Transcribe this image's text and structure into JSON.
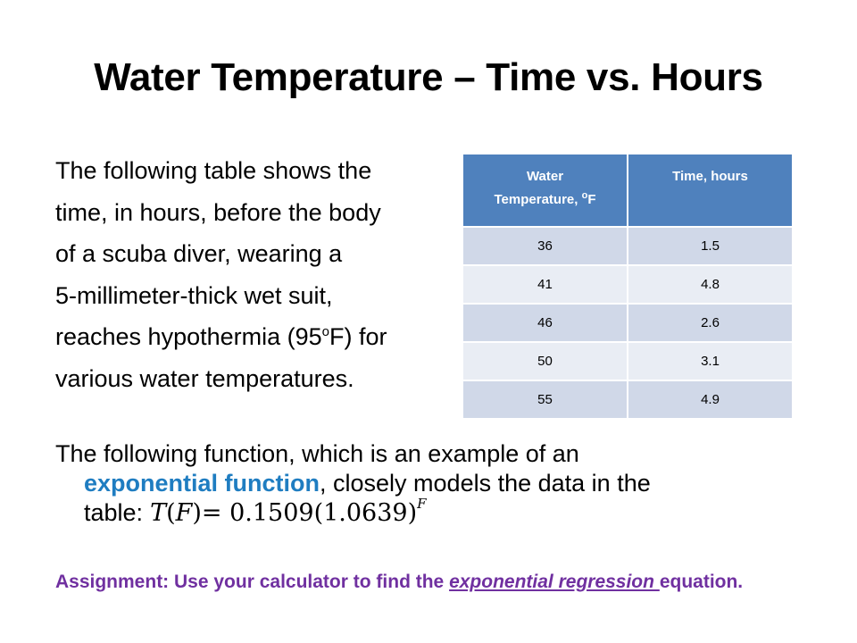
{
  "slide": {
    "title": "Water Temperature – Time vs. Hours",
    "intro_lines": [
      "The following table shows the",
      "time, in hours, before the body",
      "of a scuba diver, wearing a",
      "5-millimeter-thick wet suit,"
    ],
    "intro_line5_pre": "reaches hypothermia (95",
    "intro_line5_sup": "o",
    "intro_line5_post": "F) for",
    "intro_line6": "various water temperatures.",
    "table": {
      "header_col1_line1": "Water",
      "header_col1_line2": "Temperature,",
      "header_col1_deg": "o",
      "header_col1_unit": "F",
      "header_col2": "Time, hours",
      "rows": [
        {
          "temp": "36",
          "time": "1.5"
        },
        {
          "temp": "41",
          "time": "4.8"
        },
        {
          "temp": "46",
          "time": "2.6"
        },
        {
          "temp": "50",
          "time": "3.1"
        },
        {
          "temp": "55",
          "time": "4.9"
        }
      ]
    },
    "function_text_pre": "The following function, which is an example of an",
    "function_keyword": "exponential function",
    "function_text_mid": ", closely models the data in the",
    "function_text_end": "table:",
    "formula": {
      "lhs_fn": "T",
      "lhs_var": "F",
      "rhs": "= 0.1509(1.0639)",
      "exponent": "F"
    },
    "assignment_pre": "Assignment: Use your calculator to find the ",
    "assignment_link": "exponential regression ",
    "assignment_post": "equation."
  },
  "colors": {
    "table_header": "#4f81bd",
    "table_row_odd": "#d0d8e8",
    "table_row_even": "#e9edf4",
    "keyword": "#1f7dc1",
    "assignment": "#7030a0"
  }
}
